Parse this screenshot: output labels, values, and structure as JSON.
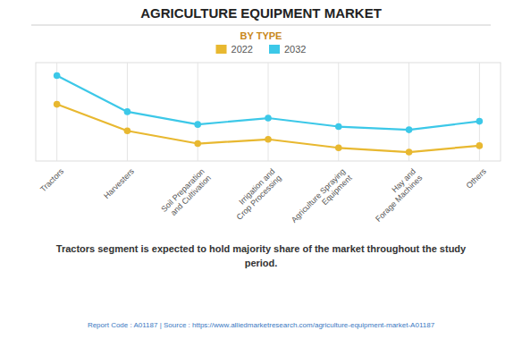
{
  "chart_data": {
    "type": "line",
    "title": "AGRICULTURE EQUIPMENT MARKET",
    "subtitle": "BY TYPE",
    "categories": [
      "Tractors",
      "Harvesters",
      "Soil Preparation\nand Cultivation",
      "Irrigation and\nCrop Processing",
      "Agriculture Spraying\nEquipment",
      "Hay and\nForage Machines",
      "Others"
    ],
    "series": [
      {
        "name": "2022",
        "color": "#E8B830",
        "values": [
          7.5,
          5.0,
          3.8,
          4.2,
          3.4,
          3.0,
          3.6
        ]
      },
      {
        "name": "2032",
        "color": "#3CC8E8",
        "values": [
          10.2,
          6.8,
          5.6,
          6.2,
          5.4,
          5.1,
          5.9
        ]
      }
    ],
    "ylim": [
      2.16,
      11.424
    ],
    "grid": true,
    "legend": "top",
    "tick_labels": "x",
    "marker": "circle",
    "annotations": [
      "Tractors segment is expected to hold majority share of the market throughout the study\nperiod.",
      "Report Code : A01187  |  Source : https://www.alliedmarketresearch.com/agriculture-equipment-market-A01187"
    ]
  }
}
